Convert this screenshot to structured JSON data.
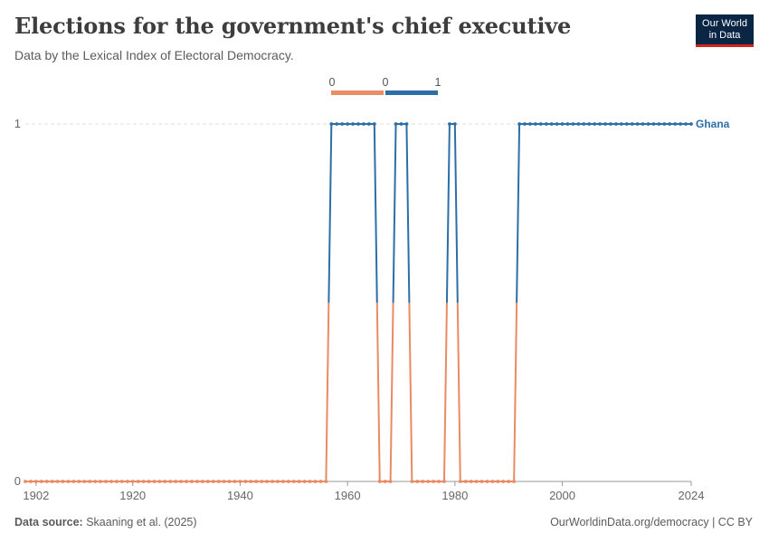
{
  "header": {
    "title": "Elections for the government's chief executive",
    "subtitle": "Data by the Lexical Index of Electoral Democracy.",
    "logo_line1": "Our World",
    "logo_line2": "in Data"
  },
  "footer": {
    "source_label": "Data source:",
    "source_text": "Skaaning et al. (2025)",
    "url": "OurWorldinData.org/democracy | CC BY"
  },
  "colors": {
    "low": "#e98b64",
    "high": "#2c6fa8",
    "grid": "#dddddd",
    "axis": "#999999"
  },
  "chart_data": {
    "type": "line",
    "title": "Elections for the government's chief executive",
    "subtitle": "Data by the Lexical Index of Electoral Democracy.",
    "xlabel": "",
    "ylabel": "",
    "xlim": [
      1900,
      2024
    ],
    "ylim": [
      0,
      1
    ],
    "x_ticks": [
      "1902",
      "1920",
      "1940",
      "1960",
      "1980",
      "2000",
      "2024"
    ],
    "y_ticks": [
      "0",
      "1"
    ],
    "legend": {
      "placement": "top-center",
      "labels": [
        "0",
        "0",
        "1"
      ]
    },
    "grid": "horizontal-dashed",
    "series": [
      {
        "name": "Ghana",
        "years": [
          1900,
          1901,
          1902,
          1903,
          1904,
          1905,
          1906,
          1907,
          1908,
          1909,
          1910,
          1911,
          1912,
          1913,
          1914,
          1915,
          1916,
          1917,
          1918,
          1919,
          1920,
          1921,
          1922,
          1923,
          1924,
          1925,
          1926,
          1927,
          1928,
          1929,
          1930,
          1931,
          1932,
          1933,
          1934,
          1935,
          1936,
          1937,
          1938,
          1939,
          1940,
          1941,
          1942,
          1943,
          1944,
          1945,
          1946,
          1947,
          1948,
          1949,
          1950,
          1951,
          1952,
          1953,
          1954,
          1955,
          1956,
          1957,
          1958,
          1959,
          1960,
          1961,
          1962,
          1963,
          1964,
          1965,
          1966,
          1967,
          1968,
          1969,
          1970,
          1971,
          1972,
          1973,
          1974,
          1975,
          1976,
          1977,
          1978,
          1979,
          1980,
          1981,
          1982,
          1983,
          1984,
          1985,
          1986,
          1987,
          1988,
          1989,
          1990,
          1991,
          1992,
          1993,
          1994,
          1995,
          1996,
          1997,
          1998,
          1999,
          2000,
          2001,
          2002,
          2003,
          2004,
          2005,
          2006,
          2007,
          2008,
          2009,
          2010,
          2011,
          2012,
          2013,
          2014,
          2015,
          2016,
          2017,
          2018,
          2019,
          2020,
          2021,
          2022,
          2023,
          2024
        ],
        "values": [
          0,
          0,
          0,
          0,
          0,
          0,
          0,
          0,
          0,
          0,
          0,
          0,
          0,
          0,
          0,
          0,
          0,
          0,
          0,
          0,
          0,
          0,
          0,
          0,
          0,
          0,
          0,
          0,
          0,
          0,
          0,
          0,
          0,
          0,
          0,
          0,
          0,
          0,
          0,
          0,
          0,
          0,
          0,
          0,
          0,
          0,
          0,
          0,
          0,
          0,
          0,
          0,
          0,
          0,
          0,
          0,
          0,
          1,
          1,
          1,
          1,
          1,
          1,
          1,
          1,
          1,
          0,
          0,
          0,
          1,
          1,
          1,
          0,
          0,
          0,
          0,
          0,
          0,
          0,
          1,
          1,
          0,
          0,
          0,
          0,
          0,
          0,
          0,
          0,
          0,
          0,
          0,
          1,
          1,
          1,
          1,
          1,
          1,
          1,
          1,
          1,
          1,
          1,
          1,
          1,
          1,
          1,
          1,
          1,
          1,
          1,
          1,
          1,
          1,
          1,
          1,
          1,
          1,
          1,
          1,
          1,
          1,
          1,
          1,
          1
        ]
      }
    ]
  }
}
